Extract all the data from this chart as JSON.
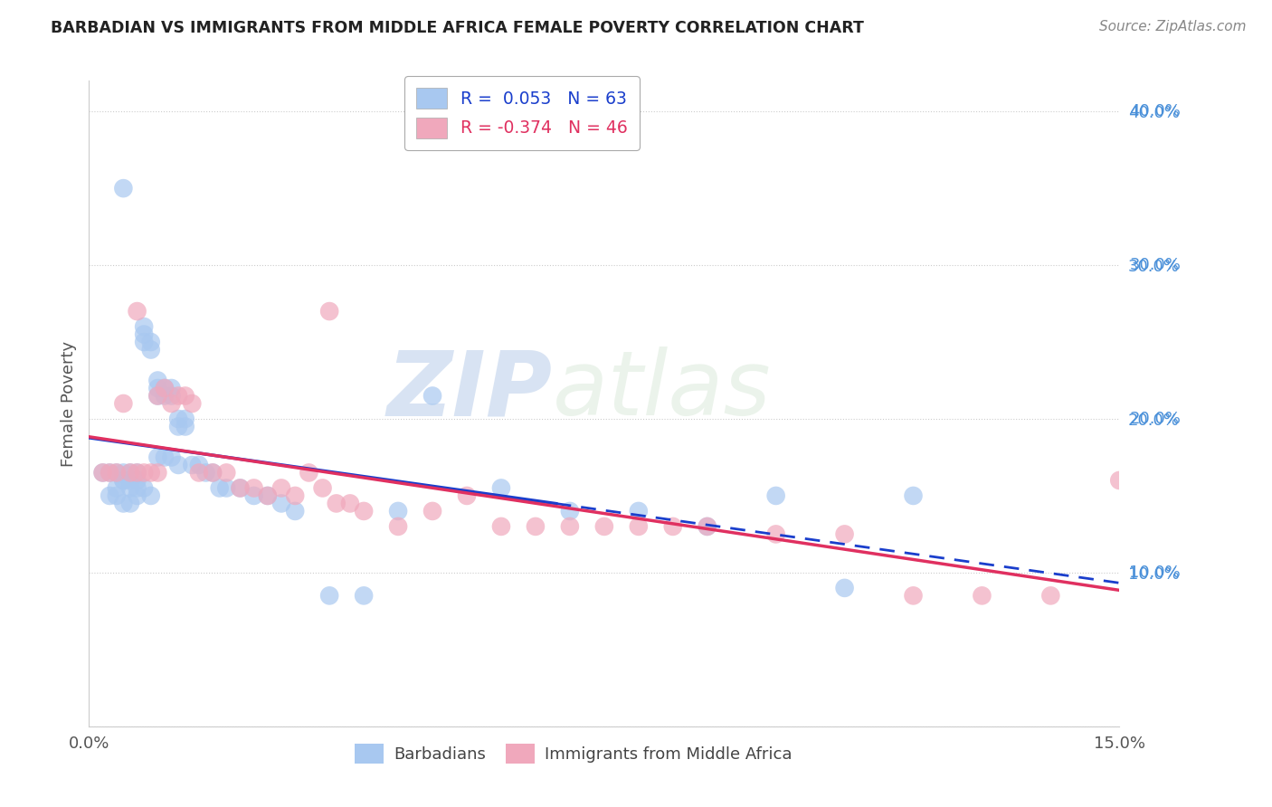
{
  "title": "BARBADIAN VS IMMIGRANTS FROM MIDDLE AFRICA FEMALE POVERTY CORRELATION CHART",
  "source": "Source: ZipAtlas.com",
  "ylabel": "Female Poverty",
  "xlim": [
    0.0,
    0.15
  ],
  "ylim": [
    0.0,
    0.42
  ],
  "x_tick_labels": [
    "0.0%",
    "",
    "",
    "15.0%"
  ],
  "y_tick_labels": [
    "",
    "10.0%",
    "20.0%",
    "30.0%",
    "40.0%"
  ],
  "barbadian_color": "#A8C8F0",
  "immigrant_color": "#F0A8BC",
  "barbadian_line_color": "#1A3ECC",
  "immigrant_line_color": "#E03060",
  "R_barbadian": 0.053,
  "N_barbadian": 63,
  "R_immigrant": -0.374,
  "N_immigrant": 46,
  "legend_label_1": "Barbadians",
  "legend_label_2": "Immigrants from Middle Africa",
  "watermark_zip": "ZIP",
  "watermark_atlas": "atlas",
  "barbadian_x": [
    0.002,
    0.003,
    0.004,
    0.005,
    0.005,
    0.005,
    0.006,
    0.006,
    0.006,
    0.007,
    0.007,
    0.008,
    0.008,
    0.008,
    0.009,
    0.009,
    0.01,
    0.01,
    0.01,
    0.011,
    0.011,
    0.012,
    0.012,
    0.013,
    0.013,
    0.014,
    0.014,
    0.003,
    0.004,
    0.004,
    0.005,
    0.006,
    0.007,
    0.007,
    0.008,
    0.009,
    0.01,
    0.011,
    0.012,
    0.013,
    0.015,
    0.016,
    0.017,
    0.018,
    0.019,
    0.02,
    0.022,
    0.024,
    0.026,
    0.028,
    0.03,
    0.035,
    0.04,
    0.045,
    0.05,
    0.06,
    0.07,
    0.08,
    0.09,
    0.1,
    0.11,
    0.12,
    0.005
  ],
  "barbadian_y": [
    0.165,
    0.165,
    0.165,
    0.16,
    0.16,
    0.165,
    0.155,
    0.16,
    0.165,
    0.16,
    0.165,
    0.255,
    0.25,
    0.26,
    0.245,
    0.25,
    0.22,
    0.225,
    0.215,
    0.215,
    0.22,
    0.215,
    0.22,
    0.195,
    0.2,
    0.195,
    0.2,
    0.15,
    0.15,
    0.155,
    0.145,
    0.145,
    0.15,
    0.155,
    0.155,
    0.15,
    0.175,
    0.175,
    0.175,
    0.17,
    0.17,
    0.17,
    0.165,
    0.165,
    0.155,
    0.155,
    0.155,
    0.15,
    0.15,
    0.145,
    0.14,
    0.085,
    0.085,
    0.14,
    0.215,
    0.155,
    0.14,
    0.14,
    0.13,
    0.15,
    0.09,
    0.15,
    0.35
  ],
  "immigrant_x": [
    0.002,
    0.003,
    0.004,
    0.005,
    0.006,
    0.007,
    0.008,
    0.009,
    0.01,
    0.011,
    0.012,
    0.013,
    0.014,
    0.015,
    0.016,
    0.018,
    0.02,
    0.022,
    0.024,
    0.026,
    0.028,
    0.03,
    0.032,
    0.034,
    0.036,
    0.038,
    0.04,
    0.045,
    0.05,
    0.055,
    0.06,
    0.065,
    0.07,
    0.075,
    0.08,
    0.085,
    0.09,
    0.1,
    0.11,
    0.12,
    0.13,
    0.14,
    0.15,
    0.007,
    0.01,
    0.035
  ],
  "immigrant_y": [
    0.165,
    0.165,
    0.165,
    0.21,
    0.165,
    0.165,
    0.165,
    0.165,
    0.165,
    0.22,
    0.21,
    0.215,
    0.215,
    0.21,
    0.165,
    0.165,
    0.165,
    0.155,
    0.155,
    0.15,
    0.155,
    0.15,
    0.165,
    0.155,
    0.145,
    0.145,
    0.14,
    0.13,
    0.14,
    0.15,
    0.13,
    0.13,
    0.13,
    0.13,
    0.13,
    0.13,
    0.13,
    0.125,
    0.125,
    0.085,
    0.085,
    0.085,
    0.16,
    0.27,
    0.215,
    0.27
  ]
}
